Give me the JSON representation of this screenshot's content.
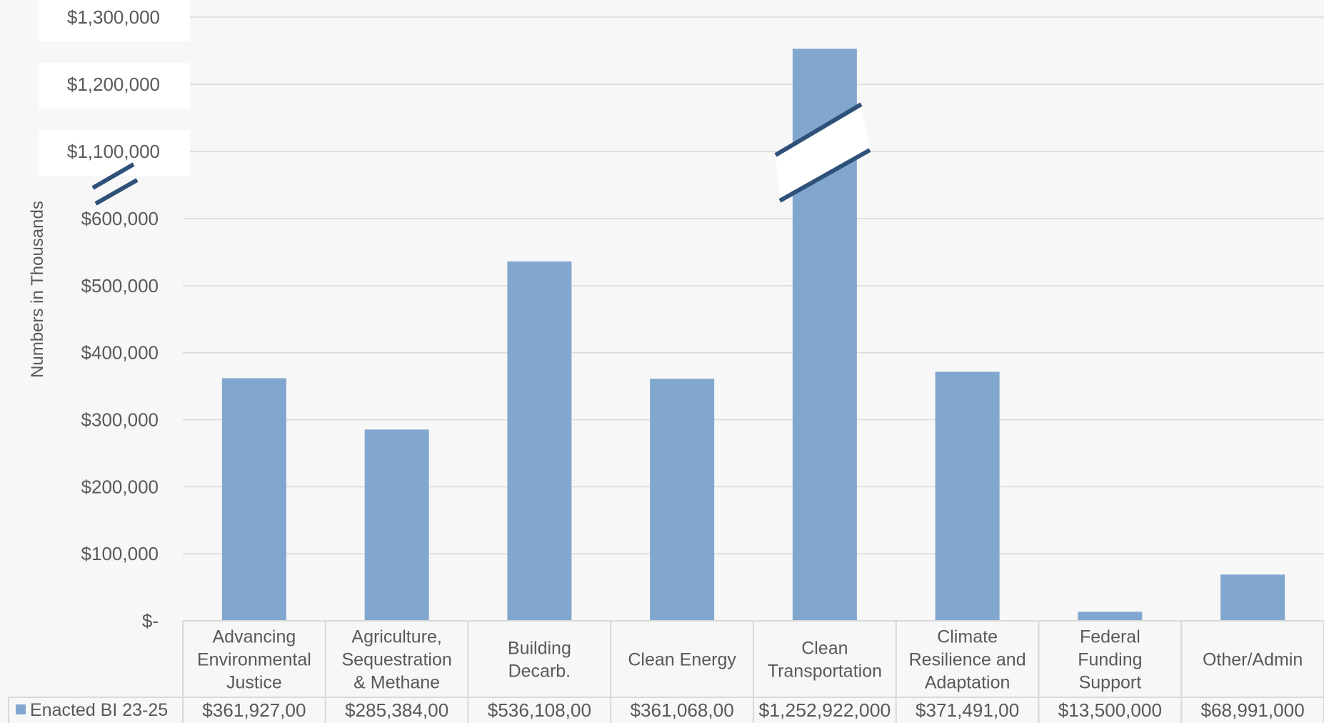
{
  "chart_data": {
    "type": "bar",
    "ylabel": "Numbers in Thousands",
    "axis_break": {
      "from": 600000,
      "to": 1100000
    },
    "ylim": [
      0,
      1300000
    ],
    "y_ticks": [
      {
        "value": 0,
        "label": "$-"
      },
      {
        "value": 100000,
        "label": "$100,000"
      },
      {
        "value": 200000,
        "label": "$200,000"
      },
      {
        "value": 300000,
        "label": "$300,000"
      },
      {
        "value": 400000,
        "label": "$400,000"
      },
      {
        "value": 500000,
        "label": "$500,000"
      },
      {
        "value": 600000,
        "label": "$600,000"
      },
      {
        "value": 1100000,
        "label": "$1,100,000"
      },
      {
        "value": 1200000,
        "label": "$1,200,000"
      },
      {
        "value": 1300000,
        "label": "$1,300,000"
      }
    ],
    "categories": [
      [
        "Advancing",
        "Environmental",
        "Justice"
      ],
      [
        "Agriculture,",
        "Sequestration",
        "& Methane"
      ],
      [
        "Building",
        "Decarb."
      ],
      [
        "Clean Energy"
      ],
      [
        "Clean",
        "Transportation"
      ],
      [
        "Climate",
        "Resilience and",
        "Adaptation"
      ],
      [
        "Federal",
        "Funding",
        "Support"
      ],
      [
        "Other/Admin"
      ]
    ],
    "series": [
      {
        "name": "Enacted BI 23-25",
        "values": [
          361927,
          285384,
          536108,
          361068,
          1252922,
          371491,
          13500,
          68991
        ],
        "table_labels": [
          "$361,927,00",
          "$285,384,00",
          "$536,108,00",
          "$361,068,00",
          "$1,252,922,000",
          "$371,491,00",
          "$13,500,000",
          "$68,991,000"
        ]
      }
    ],
    "colors": {
      "bar": "#81a7cf",
      "break_line": "#2d5178",
      "grid": "#d9d9d9",
      "background": "#f7f7f7"
    },
    "grid": true,
    "legend": "data-table-left"
  }
}
